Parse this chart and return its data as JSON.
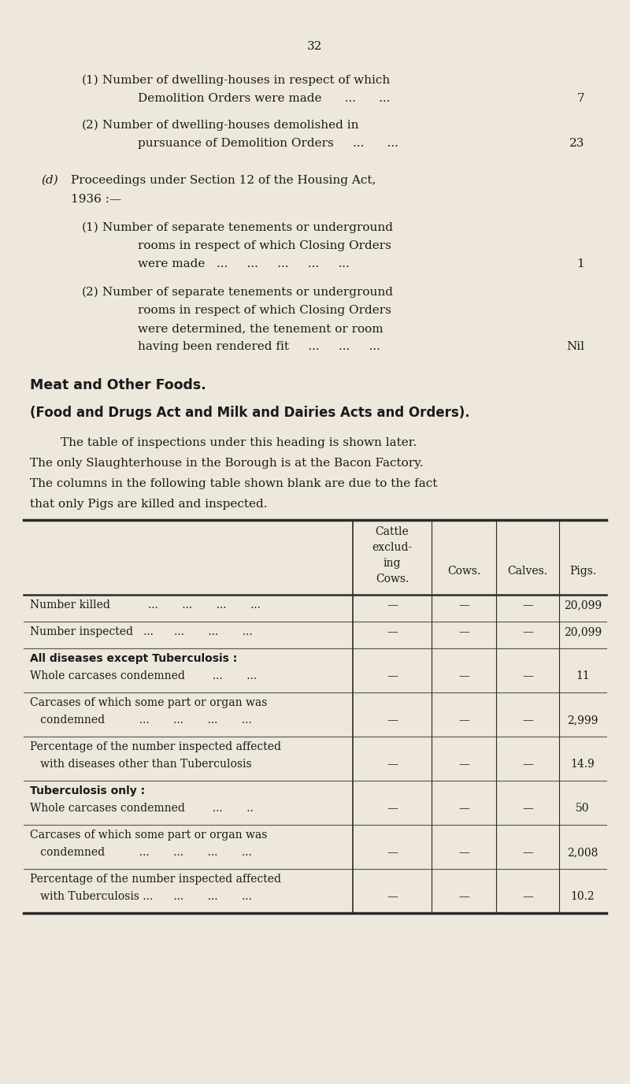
{
  "bg_color": "#ede8db",
  "text_color": "#1a1a1a",
  "page_number": "32",
  "bold_heading1": "Meat and Other Foods.",
  "bold_heading2": "(Food and Drugs Act and Milk and Dairies Acts and Orders).",
  "paragraph_lines": [
    "        The table of inspections under this heading is shown later.",
    "The only Slaughterhouse in the Borough is at the Bacon Factory.",
    "The columns in the following table shown blank are due to the fact",
    "that only Pigs are killed and inspected."
  ],
  "col_header_lines": [
    "Cattle",
    "exclud-",
    "ing",
    "Cows."
  ],
  "col_other_headers": [
    "Cows.",
    "Calves.",
    "Pigs."
  ],
  "table_rows": [
    {
      "lines": [
        "Number killed           ...       ...       ...       ..."
      ],
      "bold": false,
      "values": [
        "—",
        "—",
        "—",
        "20,099"
      ]
    },
    {
      "lines": [
        "Number inspected   ...      ...       ...       ..."
      ],
      "bold": false,
      "values": [
        "—",
        "—",
        "—",
        "20,099"
      ]
    },
    {
      "lines": [
        "All diseases except Tuberculosis :",
        "Whole carcases condemned        ...       ..."
      ],
      "bold": true,
      "values": [
        "—",
        "—",
        "—",
        "11"
      ]
    },
    {
      "lines": [
        "Carcases of which some part or organ was",
        "   condemned          ...       ...       ...       ..."
      ],
      "bold": false,
      "values": [
        "—",
        "—",
        "—",
        "2,999"
      ]
    },
    {
      "lines": [
        "Percentage of the number inspected affected",
        "   with diseases other than Tuberculosis"
      ],
      "bold": false,
      "values": [
        "—",
        "—",
        "—",
        "14.9"
      ]
    },
    {
      "lines": [
        "Tuberculosis only :",
        "Whole carcases condemned        ...       .."
      ],
      "bold": true,
      "values": [
        "—",
        "—",
        "—",
        "50"
      ]
    },
    {
      "lines": [
        "Carcases of which some part or organ was",
        "   condemned          ...       ...       ...       ..."
      ],
      "bold": false,
      "values": [
        "—",
        "—",
        "—",
        "2,008"
      ]
    },
    {
      "lines": [
        "Percentage of the number inspected affected",
        "   with Tuberculosis ...      ...       ...       ..."
      ],
      "bold": false,
      "values": [
        "—",
        "—",
        "—",
        "10.2"
      ]
    }
  ]
}
